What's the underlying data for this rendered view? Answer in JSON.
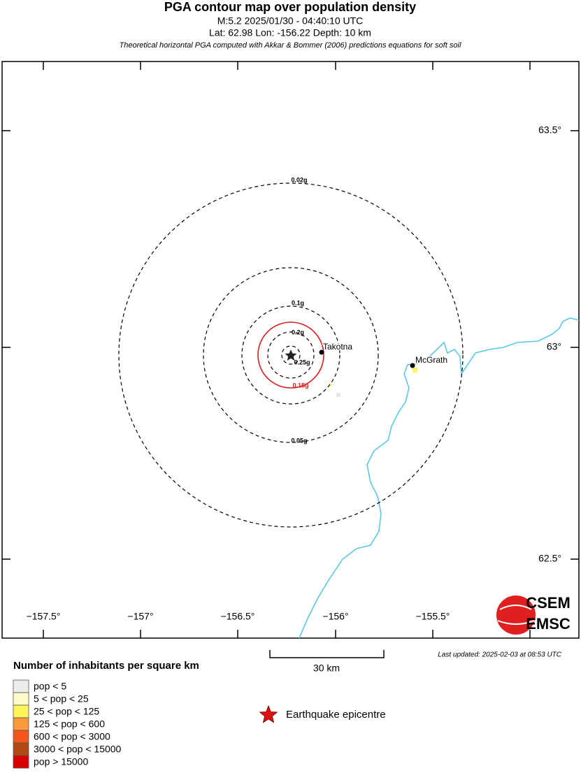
{
  "header": {
    "title": "PGA contour map over population density",
    "event": "M:5.2 2025/01/30 - 04:40:10 UTC",
    "location": "Lat: 62.98 Lon: -156.22 Depth: 10 km",
    "note": "Theoretical horizontal PGA computed with Akkar & Bommer (2006) predictions equations for soft soil"
  },
  "map": {
    "lon_labels": [
      "−157.5°",
      "−157°",
      "−156.5°",
      "−156°",
      "−155.5°"
    ],
    "lat_labels": [
      "63.5°",
      "63°",
      "62.5°"
    ],
    "contours": [
      "0.02g",
      "0.05g",
      "0.1g",
      "0.15g",
      "0.2g",
      "0.25g"
    ],
    "places": [
      "Takotna",
      "McGrath"
    ],
    "logo": [
      "CSEM",
      "EMSC"
    ]
  },
  "scale_bar": "30 km",
  "last_updated": "Last updated: 2025-02-03 at 08:53 UTC",
  "legend": {
    "title": "Number of inhabitants per square km",
    "items": [
      "pop < 5",
      "5 < pop < 25",
      "25 < pop < 125",
      "125 < pop < 600",
      "600 < pop < 3000",
      "3000 < pop < 15000",
      "pop > 15000"
    ],
    "epicentre": "Earthquake epicentre"
  }
}
